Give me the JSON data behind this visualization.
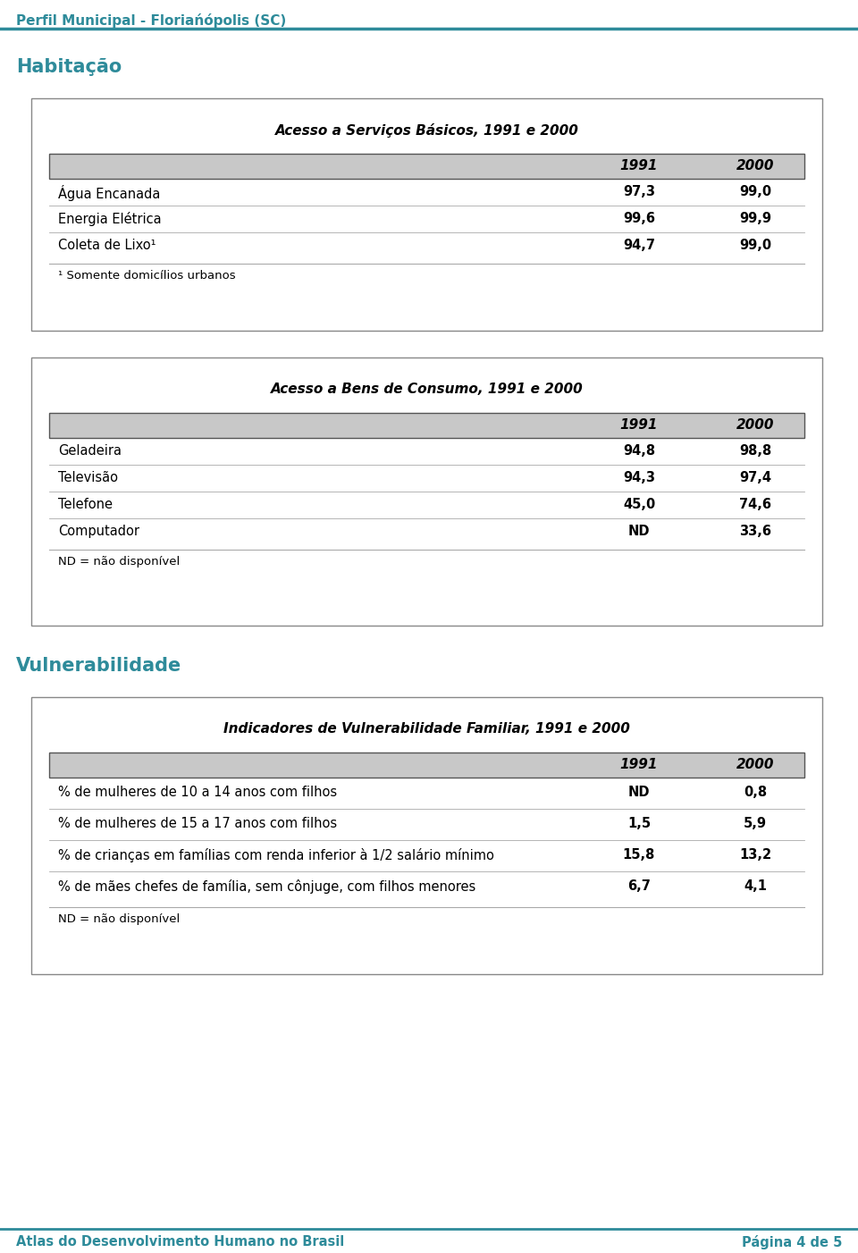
{
  "page_title": "Perfil Municipal - Floriańópolis (SC)",
  "footer_left": "Atlas do Desenvolvimento Humano no Brasil",
  "footer_right": "Página 4 de 5",
  "section1_title": "Habitação",
  "section2_title": "Vulnerabilidade",
  "table1_title": "Acesso a Serviços Básicos, 1991 e 2000",
  "table1_rows": [
    [
      "Água Encanada",
      "97,3",
      "99,0"
    ],
    [
      "Energia Elétrica",
      "99,6",
      "99,9"
    ],
    [
      "Coleta de Lixo¹",
      "94,7",
      "99,0"
    ]
  ],
  "table1_footnote": "¹ Somente domicílios urbanos",
  "table2_title": "Acesso a Bens de Consumo, 1991 e 2000",
  "table2_rows": [
    [
      "Geladeira",
      "94,8",
      "98,8"
    ],
    [
      "Televisão",
      "94,3",
      "97,4"
    ],
    [
      "Telefone",
      "45,0",
      "74,6"
    ],
    [
      "Computador",
      "ND",
      "33,6"
    ]
  ],
  "table2_footnote": "ND = não disponível",
  "table3_title": "Indicadores de Vulnerabilidade Familiar, 1991 e 2000",
  "table3_rows": [
    [
      "% de mulheres de 10 a 14 anos com filhos",
      "ND",
      "0,8"
    ],
    [
      "% de mulheres de 15 a 17 anos com filhos",
      "1,5",
      "5,9"
    ],
    [
      "% de crianças em famílias com renda inferior à 1/2 salário mínimo",
      "15,8",
      "13,2"
    ],
    [
      "% de mães chefes de família, sem cônjuge, com filhos menores",
      "6,7",
      "4,1"
    ]
  ],
  "table3_footnote": "ND = não disponível",
  "cyan_color": "#2E8B9A",
  "header_bg": "#C8C8C8",
  "background": "#FFFFFF",
  "page_title_color": "#2E8B9A",
  "section_title_color": "#2E8B9A",
  "footer_color": "#2E8B9A",
  "header_line_color": "#2E8B9A",
  "box_border_color": "#888888",
  "row_sep_color": "#AAAAAA",
  "header_border_color": "#555555"
}
